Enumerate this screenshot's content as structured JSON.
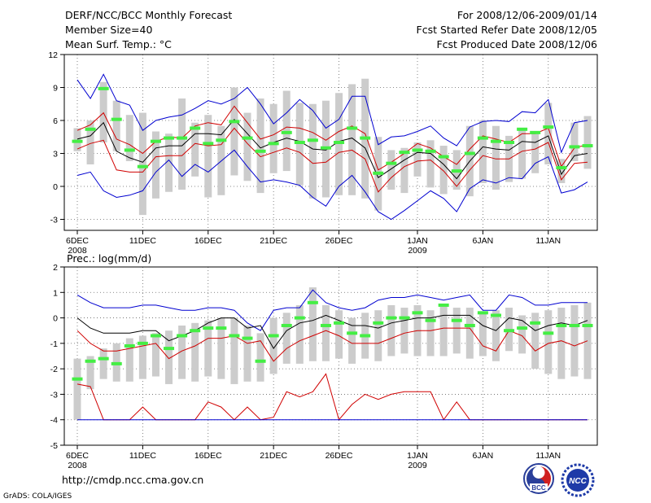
{
  "header": {
    "left": [
      "DERF/NCC/BCC Monthly Forecast",
      "Member Size=40",
      "Mean Surf. Temp.: °C"
    ],
    "right": [
      "For 2008/12/06-2009/01/14",
      "Fcst Started Refer Date 2008/12/05",
      "Fcst Produced Date 2008/12/06"
    ]
  },
  "footer": {
    "url": "http://cmdp.ncc.cma.gov.cn",
    "credit": "GrADS: COLA/IGES"
  },
  "logos": {
    "left": "BCC",
    "right": "NCC"
  },
  "colors": {
    "ensemble_max_min": "#0000d0",
    "spread": "#d00000",
    "mean": "#000000",
    "median_marker": "#44ee44",
    "box": "#cccccc"
  },
  "chart_data": [
    {
      "type": "line",
      "title": "Mean Surf. Temp.: °C",
      "x": "days 2008/12/06 .. 2009/01/14 (40 days)",
      "xticks": [
        "6DEC",
        "11DEC",
        "16DEC",
        "21DEC",
        "26DEC",
        "1JAN",
        "6JAN",
        "11JAN"
      ],
      "xtick_years": {
        "0": "2008",
        "5": "2009"
      },
      "ylim": [
        -4,
        12
      ],
      "yticks": [
        -3,
        0,
        3,
        6,
        9,
        12
      ],
      "grid": true,
      "series": [
        {
          "name": "max",
          "color": "#0000d0",
          "values": [
            9.7,
            8.0,
            10.2,
            7.8,
            7.4,
            5.1,
            6.0,
            6.3,
            6.5,
            7.1,
            7.8,
            7.5,
            8.0,
            9.0,
            7.5,
            5.7,
            6.7,
            7.9,
            6.9,
            5.3,
            6.1,
            8.2,
            8.2,
            3.8,
            4.5,
            4.6,
            5.0,
            5.5,
            4.4,
            3.7,
            5.4,
            5.9,
            6.0,
            5.9,
            6.8,
            6.7,
            7.9,
            3.1,
            5.8,
            6.0
          ]
        },
        {
          "name": "upper",
          "color": "#d00000",
          "values": [
            5.1,
            5.6,
            6.7,
            4.3,
            3.8,
            3.0,
            4.1,
            4.5,
            4.4,
            5.5,
            5.8,
            5.6,
            7.3,
            5.8,
            4.3,
            4.7,
            5.4,
            5.3,
            4.9,
            4.2,
            5.0,
            5.5,
            4.8,
            1.5,
            2.2,
            3.0,
            3.9,
            3.5,
            2.7,
            2.0,
            3.4,
            4.6,
            4.3,
            4.0,
            4.8,
            4.8,
            5.3,
            1.8,
            3.5,
            3.8
          ]
        },
        {
          "name": "mean",
          "color": "#000000",
          "values": [
            4.3,
            4.6,
            5.8,
            3.2,
            2.6,
            2.2,
            3.5,
            3.7,
            3.7,
            4.8,
            4.8,
            4.7,
            6.1,
            4.8,
            3.5,
            4.0,
            4.4,
            4.1,
            3.4,
            3.3,
            4.1,
            4.4,
            3.5,
            0.8,
            1.6,
            2.4,
            3.1,
            3.0,
            2.0,
            0.7,
            2.3,
            3.6,
            3.4,
            3.3,
            4.1,
            4.0,
            4.6,
            1.1,
            2.8,
            3.0
          ]
        },
        {
          "name": "lower",
          "color": "#d00000",
          "values": [
            3.4,
            3.9,
            4.2,
            1.5,
            1.3,
            1.3,
            2.7,
            2.8,
            2.8,
            3.9,
            3.7,
            3.8,
            5.3,
            3.9,
            2.7,
            3.1,
            3.5,
            3.1,
            2.1,
            2.2,
            3.1,
            3.3,
            2.5,
            -0.5,
            0.8,
            1.8,
            2.3,
            2.4,
            1.4,
            0.0,
            1.5,
            2.8,
            2.5,
            2.5,
            3.2,
            3.4,
            4.0,
            0.6,
            2.1,
            2.2
          ]
        },
        {
          "name": "min",
          "color": "#0000d0",
          "values": [
            1.0,
            1.3,
            -0.4,
            -1.0,
            -0.8,
            -0.4,
            1.3,
            2.4,
            0.9,
            2.0,
            1.3,
            2.3,
            3.3,
            1.8,
            0.4,
            0.6,
            0.4,
            0.1,
            -1.0,
            -1.8,
            0.0,
            1.0,
            -0.5,
            -2.3,
            -3.0,
            -2.2,
            -1.3,
            -0.4,
            -1.1,
            -2.3,
            -0.2,
            0.6,
            0.3,
            0.8,
            0.7,
            2.1,
            2.7,
            -0.6,
            -0.3,
            0.4
          ]
        }
      ],
      "boxes": {
        "name": "ensemble range",
        "low": [
          3.2,
          2.0,
          4.0,
          3.2,
          2.3,
          -2.6,
          -1.1,
          -0.5,
          -0.3,
          0.9,
          -1.0,
          -0.8,
          1.0,
          0.5,
          -0.6,
          1.2,
          1.4,
          0.1,
          -1.1,
          -1.0,
          -0.8,
          -0.8,
          -1.1,
          -2.2,
          -0.3,
          -0.6,
          0.9,
          -0.1,
          -0.7,
          -0.3,
          -0.9,
          0.3,
          -0.3,
          0.4,
          0.7,
          1.2,
          2.0,
          0.3,
          2.3,
          1.6
        ],
        "high": [
          5.3,
          6.0,
          9.5,
          7.8,
          6.5,
          6.7,
          5.0,
          4.8,
          8.0,
          5.8,
          6.5,
          5.5,
          9.0,
          6.7,
          8.0,
          7.5,
          8.7,
          7.6,
          7.5,
          7.8,
          8.5,
          9.3,
          9.8,
          4.5,
          3.3,
          3.5,
          4.0,
          4.2,
          3.7,
          3.3,
          5.5,
          6.0,
          5.5,
          4.6,
          5.3,
          5.0,
          7.6,
          2.5,
          5.8,
          6.4
        ]
      },
      "markers": {
        "name": "median",
        "values": [
          4.1,
          5.2,
          8.9,
          6.1,
          3.3,
          1.8,
          4.1,
          4.4,
          4.4,
          5.3,
          3.9,
          4.2,
          5.9,
          4.4,
          3.2,
          3.9,
          4.9,
          4.0,
          4.2,
          3.5,
          4.0,
          5.3,
          4.4,
          1.2,
          2.1,
          3.1,
          3.3,
          3.2,
          2.7,
          1.4,
          3.0,
          4.4,
          4.1,
          4.0,
          5.2,
          4.9,
          5.4,
          1.7,
          3.6,
          3.7
        ]
      }
    },
    {
      "type": "line",
      "title": "Prec.: log(mm/d)",
      "x": "days 2008/12/06 .. 2009/01/14 (40 days)",
      "xticks": [
        "6DEC",
        "11DEC",
        "16DEC",
        "21DEC",
        "26DEC",
        "1JAN",
        "6JAN",
        "11JAN"
      ],
      "xtick_years": {
        "0": "2008",
        "5": "2009"
      },
      "ylim": [
        -5,
        2
      ],
      "yticks": [
        -5,
        -4,
        -3,
        -2,
        -1,
        0,
        1,
        2
      ],
      "grid": true,
      "series": [
        {
          "name": "max",
          "color": "#0000d0",
          "values": [
            0.9,
            0.6,
            0.4,
            0.4,
            0.4,
            0.5,
            0.5,
            0.4,
            0.3,
            0.3,
            0.4,
            0.4,
            0.3,
            -0.2,
            -0.5,
            0.3,
            0.4,
            0.4,
            1.1,
            0.6,
            0.4,
            0.3,
            0.4,
            0.7,
            0.8,
            0.8,
            0.9,
            0.8,
            0.7,
            0.8,
            0.9,
            0.3,
            0.3,
            0.9,
            0.8,
            0.5,
            0.5,
            0.6,
            0.6,
            0.6
          ]
        },
        {
          "name": "upper",
          "color": "#000000",
          "values": [
            0.0,
            -0.4,
            -0.6,
            -0.6,
            -0.6,
            -0.5,
            -0.5,
            -0.9,
            -0.7,
            -0.5,
            -0.2,
            0.0,
            0.0,
            -0.4,
            -0.3,
            -1.2,
            -0.5,
            -0.2,
            -0.1,
            0.1,
            -0.1,
            -0.3,
            -0.3,
            -0.4,
            -0.2,
            -0.1,
            0.0,
            0.0,
            0.1,
            0.1,
            0.1,
            -0.3,
            -0.5,
            0.0,
            -0.1,
            -0.5,
            -0.3,
            -0.2,
            -0.3,
            -0.1
          ]
        },
        {
          "name": "lower",
          "color": "#d00000",
          "values": [
            -0.5,
            -1.0,
            -1.3,
            -1.3,
            -1.2,
            -1.1,
            -1.0,
            -1.6,
            -1.3,
            -1.1,
            -0.8,
            -0.8,
            -0.7,
            -1.0,
            -0.9,
            -1.7,
            -1.2,
            -0.9,
            -0.7,
            -0.5,
            -0.7,
            -1.0,
            -1.0,
            -1.0,
            -0.8,
            -0.6,
            -0.5,
            -0.5,
            -0.4,
            -0.4,
            -0.4,
            -1.1,
            -1.3,
            -0.5,
            -0.7,
            -1.3,
            -1.0,
            -0.9,
            -1.1,
            -0.9
          ]
        },
        {
          "name": "min",
          "color": "#d00000",
          "values": [
            -2.6,
            -2.7,
            -4.0,
            -4.0,
            -4.0,
            -3.5,
            -4.0,
            -4.0,
            -4.0,
            -4.0,
            -3.3,
            -3.5,
            -4.0,
            -3.5,
            -4.0,
            -3.9,
            -2.9,
            -3.1,
            -2.9,
            -2.2,
            -4.0,
            -3.4,
            -3.0,
            -3.2,
            -3.0,
            -2.9,
            -2.9,
            -2.9,
            -4.0,
            -3.3,
            -4.0,
            -4.0,
            -4.0,
            -4.0,
            -4.0,
            -4.0,
            -4.0,
            -4.0,
            -4.0,
            -4.0
          ]
        },
        {
          "name": "floor",
          "color": "#0000d0",
          "values": [
            -4.0,
            -4.0,
            -4.0,
            -4.0,
            -4.0,
            -4.0,
            -4.0,
            -4.0,
            -4.0,
            -4.0,
            -4.0,
            -4.0,
            -4.0,
            -4.0,
            -4.0,
            -4.0,
            -4.0,
            -4.0,
            -4.0,
            -4.0,
            -4.0,
            -4.0,
            -4.0,
            -4.0,
            -4.0,
            -4.0,
            -4.0,
            -4.0,
            -4.0,
            -4.0,
            -4.0,
            -4.0,
            -4.0,
            -4.0,
            -4.0,
            -4.0,
            -4.0,
            -4.0,
            -4.0,
            -4.0
          ]
        }
      ],
      "boxes": {
        "name": "ensemble range",
        "low": [
          -4.0,
          -2.8,
          -2.4,
          -2.5,
          -2.5,
          -2.4,
          -2.3,
          -2.6,
          -2.4,
          -2.5,
          -2.3,
          -2.4,
          -2.6,
          -2.5,
          -2.5,
          -2.2,
          -1.8,
          -1.8,
          -1.7,
          -1.7,
          -1.6,
          -1.8,
          -1.6,
          -1.7,
          -1.5,
          -1.4,
          -1.5,
          -1.5,
          -1.5,
          -1.4,
          -1.6,
          -1.5,
          -1.7,
          -1.3,
          -1.4,
          -2.0,
          -2.2,
          -2.4,
          -2.3,
          -2.4
        ],
        "high": [
          -1.6,
          -1.5,
          -1.2,
          -1.0,
          -0.8,
          -0.7,
          -0.6,
          -0.5,
          -0.3,
          -0.2,
          -0.1,
          0.0,
          0.0,
          -0.3,
          -0.6,
          0.0,
          0.2,
          0.5,
          1.2,
          0.5,
          0.3,
          0.0,
          0.2,
          0.3,
          0.5,
          0.4,
          0.5,
          0.3,
          0.5,
          0.4,
          0.4,
          0.2,
          0.3,
          0.4,
          0.1,
          0.2,
          0.3,
          0.4,
          0.5,
          0.6
        ]
      },
      "markers": {
        "name": "median",
        "values": [
          -2.4,
          -1.7,
          -1.6,
          -1.8,
          -1.1,
          -1.0,
          -0.7,
          -1.2,
          -0.7,
          -0.5,
          -0.4,
          -0.4,
          -0.7,
          -0.8,
          -1.7,
          -0.7,
          -0.3,
          0.0,
          0.6,
          -0.3,
          -0.2,
          -0.6,
          -0.7,
          -0.2,
          0.0,
          0.0,
          0.2,
          -0.1,
          0.5,
          -0.1,
          -0.3,
          0.2,
          0.1,
          -0.5,
          -0.4,
          -0.2,
          -0.6,
          -0.3,
          -0.3,
          -0.3
        ]
      }
    }
  ]
}
